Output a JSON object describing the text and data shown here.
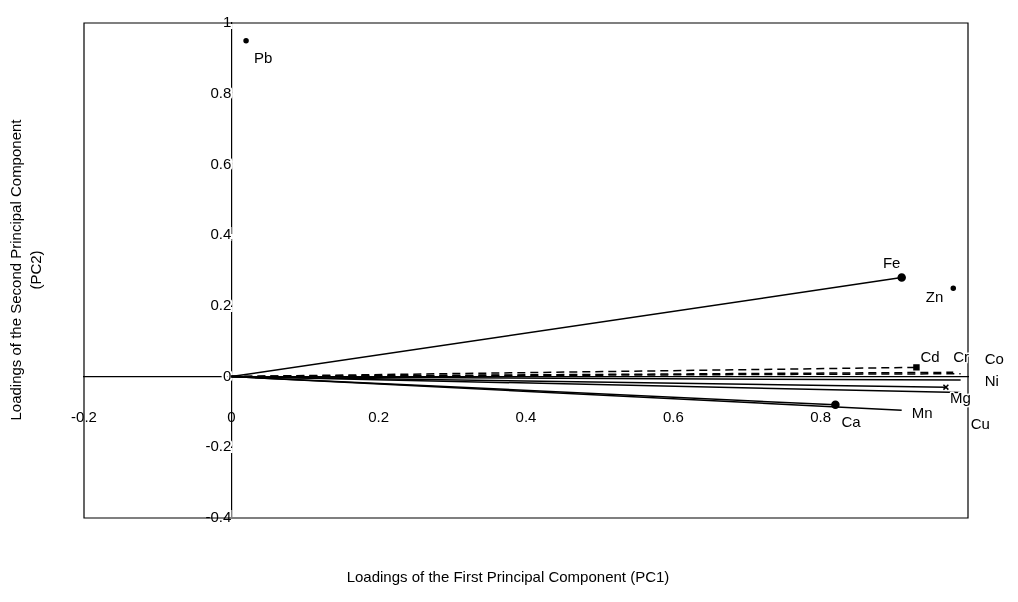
{
  "chart_data": {
    "type": "line",
    "xlabel": "Loadings of the First Principal Component (PC1)",
    "ylabel": "Loadings of the Second Principal Component\n(PC2)",
    "xlim": [
      -0.2,
      1
    ],
    "ylim": [
      -0.4,
      1
    ],
    "xticks": [
      -0.2,
      0,
      0.2,
      0.4,
      0.6,
      0.8
    ],
    "yticks": [
      -0.4,
      -0.2,
      0,
      0.2,
      0.4,
      0.6,
      0.8,
      1
    ],
    "grid": false,
    "legend": false,
    "series": [
      {
        "name": "Pb",
        "type": "scatter",
        "color": "#000000",
        "x": [
          0.02
        ],
        "values": [
          0.95
        ],
        "marker": "circle"
      },
      {
        "name": "Fe",
        "color": "#000000",
        "x": [
          0,
          0.91
        ],
        "values": [
          0,
          0.28
        ],
        "marker": "circle",
        "line_style": "solid"
      },
      {
        "name": "Zn",
        "type": "scatter",
        "color": "#000000",
        "x": [
          0.98
        ],
        "values": [
          0.25
        ],
        "marker": "circle"
      },
      {
        "name": "Cd",
        "color": "#000000",
        "x": [
          0,
          0.93
        ],
        "values": [
          0,
          0.026
        ],
        "marker": "square",
        "line_style": "dashed"
      },
      {
        "name": "Cr",
        "color": "#000000",
        "x": [
          0,
          0.98
        ],
        "values": [
          0,
          0.012
        ],
        "marker": "none",
        "line_style": "dashed"
      },
      {
        "name": "Co",
        "color": "#000000",
        "x": [
          0,
          0.99
        ],
        "values": [
          0,
          0.008
        ],
        "marker": "none",
        "line_style": "dashed"
      },
      {
        "name": "Ni",
        "color": "#000000",
        "x": [
          0,
          0.99
        ],
        "values": [
          0,
          -0.01
        ],
        "marker": "none",
        "line_style": "solid"
      },
      {
        "name": "Mg",
        "color": "#000000",
        "x": [
          0,
          0.97
        ],
        "values": [
          0,
          -0.03
        ],
        "marker": "cross",
        "line_style": "solid"
      },
      {
        "name": "Cu",
        "color": "#000000",
        "x": [
          0,
          0.99
        ],
        "values": [
          0,
          -0.045
        ],
        "marker": "none",
        "line_style": "solid"
      },
      {
        "name": "Ca",
        "color": "#000000",
        "x": [
          0,
          0.82
        ],
        "values": [
          0,
          -0.08
        ],
        "marker": "circle",
        "line_style": "solid"
      },
      {
        "name": "Mn",
        "color": "#000000",
        "x": [
          0,
          0.91
        ],
        "values": [
          0,
          -0.095
        ],
        "marker": "none",
        "line_style": "solid"
      }
    ]
  }
}
